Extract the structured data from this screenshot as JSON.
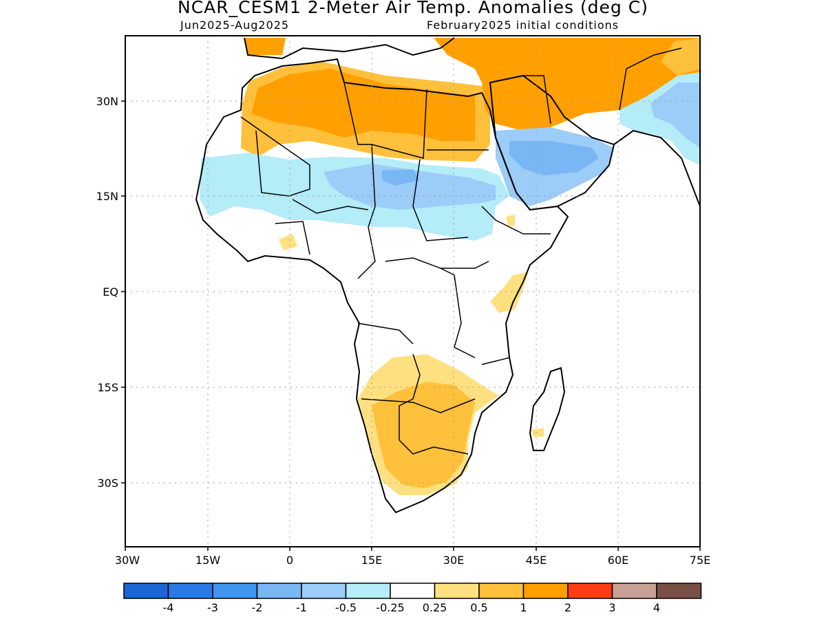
{
  "title": "NCAR_CESM1 2-Meter Air Temp. Anomalies (deg C)",
  "subtitle_left": "Jun2025-Aug2025",
  "subtitle_right": "February2025 initial conditions",
  "lat_labels": [
    "30N",
    "15N",
    "EQ",
    "15S",
    "30S"
  ],
  "lon_labels": [
    "30W",
    "15W",
    "0",
    "15E",
    "30E",
    "45E",
    "60E",
    "75E"
  ],
  "colorbar": {
    "colors": [
      "#1a66d4",
      "#2a7ae6",
      "#4095ee",
      "#78b6f4",
      "#9cccf8",
      "#b4ecf8",
      "#ffffff",
      "#ffe080",
      "#ffc03c",
      "#ffa000",
      "#ff3c14",
      "#c8a096",
      "#785046"
    ],
    "labels": [
      "-4",
      "-3",
      "-2",
      "-1",
      "-0.5",
      "-0.25",
      "0.25",
      "0.5",
      "1",
      "2",
      "3",
      "4"
    ]
  },
  "colors": {
    "warm_light": "#ffe080",
    "warm_mid": "#ffc03c",
    "warm_strong": "#ffa000",
    "cool_light": "#b4ecf8",
    "cool_mid": "#9cccf8",
    "cool_strong": "#78b6f4"
  }
}
